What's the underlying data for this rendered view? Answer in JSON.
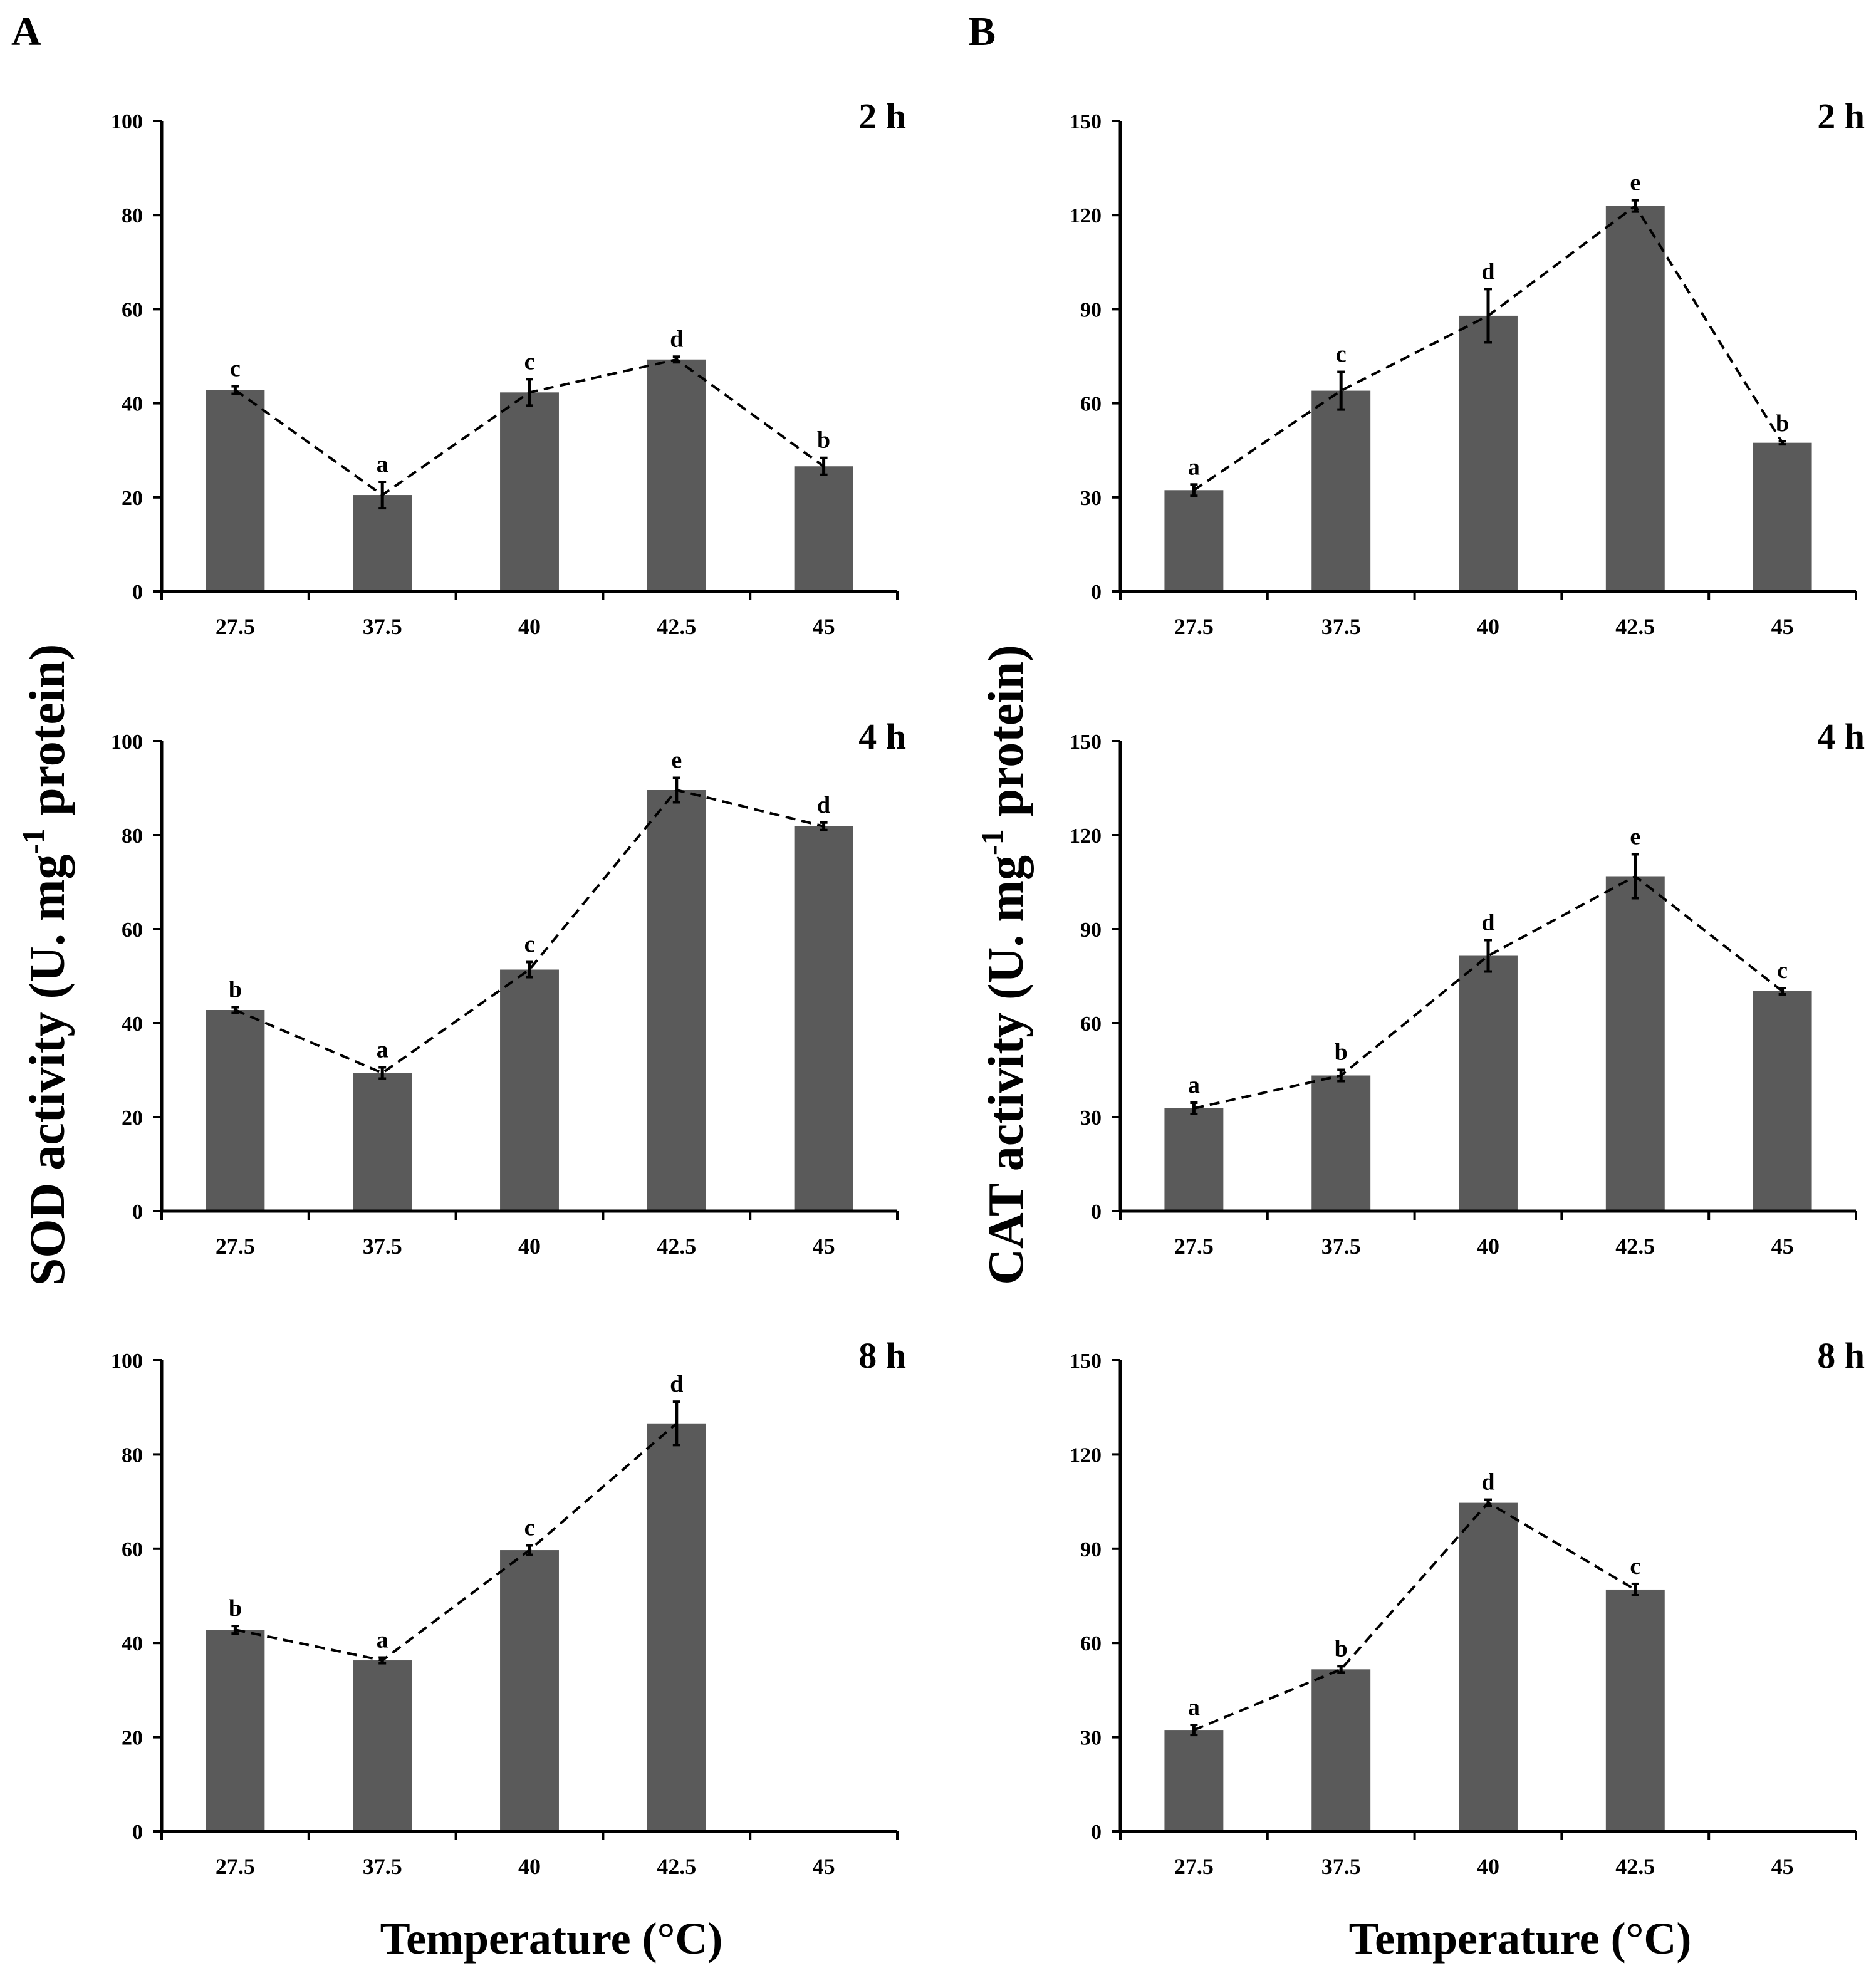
{
  "figure": {
    "x_axis_label": "Temperature (°C)",
    "bar_color": "#5a5a5a"
  },
  "panels": [
    {
      "letter": "A",
      "ylabel_main": "SOD activity (U. mg",
      "ylabel_sup": "-1",
      "ylabel_tail": " protein)"
    },
    {
      "letter": "B",
      "ylabel_main": "CAT activity (U. mg",
      "ylabel_sup": "-1",
      "ylabel_tail": " protein)"
    }
  ],
  "chart_data": [
    {
      "type": "bar",
      "panel": "A",
      "title": "2 h",
      "ylabel": "SOD activity (U. mg-1 protein)",
      "xlabel": "",
      "categories": [
        "27.5",
        "37.5",
        "40",
        "42.5",
        "45"
      ],
      "values": [
        42.8,
        20.5,
        42.3,
        49.3,
        26.6
      ],
      "errors": [
        0.8,
        2.8,
        2.8,
        0.6,
        1.8
      ],
      "letters": [
        "c",
        "a",
        "c",
        "d",
        "b"
      ],
      "ylim": [
        0,
        100
      ],
      "yticks": [
        0,
        20,
        40,
        60,
        80,
        100
      ],
      "trend_line": "dashed"
    },
    {
      "type": "bar",
      "panel": "A",
      "title": "4 h",
      "ylabel": "SOD activity (U. mg-1 protein)",
      "xlabel": "",
      "categories": [
        "27.5",
        "37.5",
        "40",
        "42.5",
        "45"
      ],
      "values": [
        42.8,
        29.4,
        51.4,
        89.6,
        81.9
      ],
      "errors": [
        0.6,
        1.2,
        1.6,
        2.6,
        0.8
      ],
      "letters": [
        "b",
        "a",
        "c",
        "e",
        "d"
      ],
      "ylim": [
        0,
        100
      ],
      "yticks": [
        0,
        20,
        40,
        60,
        80,
        100
      ],
      "trend_line": "dashed"
    },
    {
      "type": "bar",
      "panel": "A",
      "title": "8 h",
      "ylabel": "SOD activity (U. mg-1 protein)",
      "xlabel": "Temperature (°C)",
      "categories": [
        "27.5",
        "37.5",
        "40",
        "42.5",
        "45"
      ],
      "values": [
        42.8,
        36.3,
        59.7,
        86.6,
        null
      ],
      "errors": [
        0.8,
        0.6,
        1.0,
        4.6,
        null
      ],
      "letters": [
        "b",
        "a",
        "c",
        "d",
        ""
      ],
      "ylim": [
        0,
        100
      ],
      "yticks": [
        0,
        20,
        40,
        60,
        80,
        100
      ],
      "trend_line": "dashed"
    },
    {
      "type": "bar",
      "panel": "B",
      "title": "2 h",
      "ylabel": "CAT activity (U. mg-1 protein)",
      "xlabel": "",
      "categories": [
        "27.5",
        "37.5",
        "40",
        "42.5",
        "45"
      ],
      "values": [
        32.3,
        64.0,
        87.9,
        122.9,
        47.4
      ],
      "errors": [
        1.8,
        6.0,
        8.5,
        1.8,
        0.5
      ],
      "letters": [
        "a",
        "c",
        "d",
        "e",
        "b"
      ],
      "ylim": [
        0,
        150
      ],
      "yticks": [
        0,
        30,
        60,
        90,
        120,
        150
      ],
      "trend_line": "dashed"
    },
    {
      "type": "bar",
      "panel": "B",
      "title": "4 h",
      "ylabel": "CAT activity (U. mg-1 protein)",
      "xlabel": "",
      "categories": [
        "27.5",
        "37.5",
        "40",
        "42.5",
        "45"
      ],
      "values": [
        32.8,
        43.3,
        81.5,
        106.9,
        70.2
      ],
      "errors": [
        1.8,
        1.8,
        5.0,
        7.0,
        1.0
      ],
      "letters": [
        "a",
        "b",
        "d",
        "e",
        "c"
      ],
      "ylim": [
        0,
        150
      ],
      "yticks": [
        0,
        30,
        60,
        90,
        120,
        150
      ],
      "trend_line": "dashed"
    },
    {
      "type": "bar",
      "panel": "B",
      "title": "8 h",
      "ylabel": "CAT activity (U. mg-1 protein)",
      "xlabel": "Temperature (°C)",
      "categories": [
        "27.5",
        "37.5",
        "40",
        "42.5",
        "45"
      ],
      "values": [
        32.3,
        51.6,
        104.6,
        77.0,
        null
      ],
      "errors": [
        1.6,
        1.0,
        1.0,
        1.8,
        null
      ],
      "letters": [
        "a",
        "b",
        "d",
        "c",
        ""
      ],
      "ylim": [
        0,
        150
      ],
      "yticks": [
        0,
        30,
        60,
        90,
        120,
        150
      ],
      "trend_line": "dashed"
    }
  ]
}
